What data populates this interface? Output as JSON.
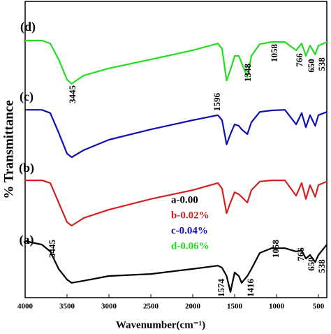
{
  "chart_data": {
    "type": "line",
    "x_label": "Wavenumber(cm⁻¹)",
    "y_label": "% Transmittance",
    "xlim": [
      4000,
      400
    ],
    "ylim": [
      0,
      100
    ],
    "xticks": [
      4000,
      3500,
      3000,
      2500,
      2000,
      1500,
      1000,
      500
    ],
    "x": [
      4000,
      3800,
      3700,
      3600,
      3500,
      3445,
      3300,
      3000,
      2500,
      2000,
      1700,
      1650,
      1596,
      1550,
      1500,
      1450,
      1416,
      1348,
      1300,
      1200,
      1058,
      900,
      766,
      700,
      650,
      600,
      538,
      500,
      400
    ],
    "series": [
      {
        "name": "a-0.00",
        "color": "#000000",
        "values": [
          19.1,
          17.9,
          15.6,
          9.7,
          6.1,
          5.0,
          5.7,
          7.3,
          8.0,
          9.7,
          10.8,
          10.1,
          7.3,
          1.9,
          8.5,
          7.3,
          5.0,
          7.3,
          9.7,
          15.1,
          16.7,
          16.7,
          15.6,
          16.0,
          13.2,
          14.4,
          12.0,
          14.4,
          17.9
        ]
      },
      {
        "name": "b-0.02%",
        "color": "#d42020",
        "values": [
          39.6,
          39.6,
          38.7,
          32.1,
          25.5,
          24.3,
          26.9,
          29.7,
          33.3,
          36.3,
          38.7,
          36.8,
          28.5,
          32.1,
          35.6,
          34.9,
          34.0,
          32.1,
          36.3,
          39.2,
          39.6,
          39.6,
          34.4,
          38.7,
          33.3,
          38.0,
          34.0,
          38.0,
          39.2
        ]
      },
      {
        "name": "c-0.04%",
        "color": "#1010b0",
        "values": [
          63.4,
          63.4,
          62.3,
          55.7,
          48.6,
          47.4,
          49.8,
          53.3,
          56.8,
          59.9,
          61.6,
          59.9,
          51.7,
          55.2,
          58.5,
          58.0,
          56.8,
          55.2,
          59.2,
          62.7,
          63.2,
          63.4,
          58.5,
          62.3,
          57.5,
          61.6,
          58.0,
          61.6,
          62.7
        ]
      },
      {
        "name": "d-0.06%",
        "color": "#22dd22",
        "values": [
          86.8,
          86.8,
          85.8,
          80.4,
          73.6,
          72.2,
          75.0,
          77.4,
          80.4,
          83.5,
          85.8,
          84.0,
          73.3,
          76.9,
          81.6,
          81.6,
          79.2,
          74.5,
          81.6,
          85.6,
          86.3,
          86.3,
          83.5,
          85.8,
          81.6,
          85.1,
          82.1,
          85.1,
          86.3
        ]
      }
    ],
    "annotations": [
      "(d)",
      "(c)",
      "(b)",
      "(a)",
      "3445",
      "1596",
      "1348",
      "1058",
      "766",
      "650",
      "538",
      "3445",
      "1574",
      "1416",
      "1058",
      "766",
      "650",
      "538"
    ]
  }
}
